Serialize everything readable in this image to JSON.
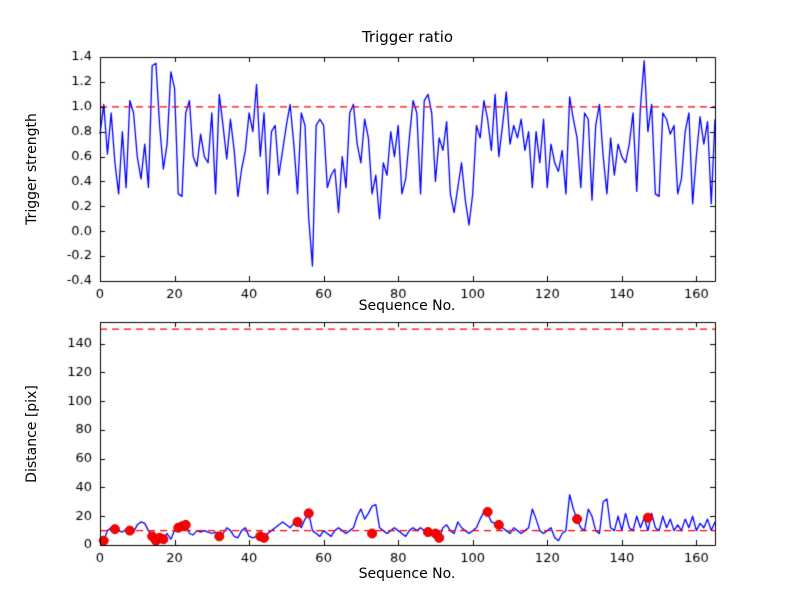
{
  "colors": {
    "line": "#0000ff",
    "threshold": "#ff0000",
    "marker_face": "#ff0000",
    "marker_edge": "#cc0000",
    "axis": "#000000",
    "background": "#ffffff"
  },
  "chart_data": [
    {
      "type": "line",
      "title": "Trigger ratio",
      "xlabel": "Sequence No.",
      "ylabel": "Trigger strength",
      "xlim": [
        0,
        165
      ],
      "ylim": [
        -0.4,
        1.4
      ],
      "xticks": [
        0,
        20,
        40,
        60,
        80,
        100,
        120,
        140,
        160
      ],
      "xticklabels": [
        "0",
        "20",
        "40",
        "60",
        "80",
        "100",
        "120",
        "140",
        "160"
      ],
      "yticks": [
        -0.4,
        -0.2,
        0.0,
        0.2,
        0.4,
        0.6,
        0.8,
        1.0,
        1.2,
        1.4
      ],
      "yticklabels": [
        "-0.4",
        "-0.2",
        "0.0",
        "0.2",
        "0.4",
        "0.6",
        "0.8",
        "1.0",
        "1.2",
        "1.4"
      ],
      "grid": false,
      "legend": "none",
      "hlines": [
        {
          "y": 1.0,
          "style": "dashed",
          "color": "#ff0000"
        }
      ],
      "series": [
        {
          "name": "trigger-strength",
          "color": "#0000ff",
          "values": [
            0.78,
            1.02,
            0.62,
            0.95,
            0.55,
            0.3,
            0.8,
            0.35,
            1.05,
            0.95,
            0.6,
            0.42,
            0.7,
            0.35,
            1.33,
            1.35,
            0.85,
            0.5,
            0.7,
            1.28,
            1.15,
            0.3,
            0.28,
            0.95,
            1.05,
            0.6,
            0.52,
            0.78,
            0.6,
            0.55,
            0.95,
            0.3,
            1.1,
            0.85,
            0.58,
            0.9,
            0.65,
            0.28,
            0.5,
            0.65,
            0.95,
            0.8,
            1.18,
            0.6,
            0.95,
            0.3,
            0.8,
            0.85,
            0.45,
            0.65,
            0.85,
            1.02,
            0.7,
            0.3,
            0.95,
            0.85,
            0.1,
            -0.28,
            0.85,
            0.9,
            0.85,
            0.35,
            0.45,
            0.5,
            0.15,
            0.6,
            0.35,
            0.95,
            1.02,
            0.7,
            0.55,
            0.9,
            0.75,
            0.3,
            0.45,
            0.1,
            0.55,
            0.45,
            0.8,
            0.6,
            0.85,
            0.3,
            0.42,
            0.75,
            1.05,
            0.95,
            0.3,
            1.05,
            1.1,
            0.95,
            0.4,
            0.75,
            0.65,
            0.88,
            0.3,
            0.15,
            0.35,
            0.55,
            0.25,
            0.05,
            0.3,
            0.85,
            0.75,
            1.05,
            0.9,
            0.65,
            1.1,
            0.6,
            0.85,
            1.12,
            0.7,
            0.85,
            0.75,
            0.9,
            0.65,
            0.8,
            0.35,
            0.8,
            0.55,
            0.9,
            0.35,
            0.7,
            0.55,
            0.48,
            0.65,
            0.3,
            1.08,
            0.9,
            0.75,
            0.35,
            0.95,
            0.9,
            0.25,
            0.85,
            1.02,
            0.6,
            0.3,
            0.75,
            0.45,
            0.7,
            0.6,
            0.55,
            0.7,
            0.95,
            0.32,
            1.0,
            1.37,
            0.8,
            1.02,
            0.3,
            0.28,
            0.95,
            0.9,
            0.78,
            0.85,
            0.3,
            0.42,
            0.8,
            0.95,
            0.22,
            0.6,
            0.92,
            0.7,
            0.88,
            0.22,
            0.9
          ]
        }
      ]
    },
    {
      "type": "line",
      "title": "",
      "xlabel": "Sequence No.",
      "ylabel": "Distance [pix]",
      "xlim": [
        0,
        165
      ],
      "ylim": [
        0,
        155
      ],
      "xticks": [
        0,
        20,
        40,
        60,
        80,
        100,
        120,
        140,
        160
      ],
      "xticklabels": [
        "0",
        "20",
        "40",
        "60",
        "80",
        "100",
        "120",
        "140",
        "160"
      ],
      "yticks": [
        0,
        20,
        40,
        60,
        80,
        100,
        120,
        140
      ],
      "yticklabels": [
        "0",
        "20",
        "40",
        "60",
        "80",
        "100",
        "120",
        "140"
      ],
      "grid": false,
      "legend": "none",
      "hlines": [
        {
          "y": 150,
          "style": "dashed",
          "color": "#ff0000"
        },
        {
          "y": 10,
          "style": "dashed",
          "color": "#ff0000"
        }
      ],
      "series": [
        {
          "name": "distance",
          "color": "#0000ff",
          "values": [
            3,
            3,
            10,
            12,
            11,
            10,
            9,
            11,
            10,
            9,
            14,
            16,
            15,
            10,
            6,
            3,
            5,
            4,
            8,
            4,
            10,
            12,
            13,
            14,
            8,
            7,
            10,
            9,
            10,
            9,
            8,
            9,
            6,
            8,
            12,
            10,
            6,
            5,
            10,
            12,
            6,
            5,
            6,
            6,
            5,
            8,
            10,
            12,
            14,
            16,
            14,
            12,
            15,
            16,
            12,
            18,
            22,
            10,
            8,
            6,
            10,
            8,
            6,
            10,
            12,
            10,
            8,
            10,
            12,
            20,
            25,
            18,
            22,
            27,
            28,
            12,
            10,
            8,
            10,
            12,
            10,
            8,
            6,
            10,
            12,
            10,
            12,
            10,
            9,
            8,
            6,
            5,
            12,
            14,
            10,
            8,
            16,
            12,
            10,
            8,
            10,
            12,
            18,
            23,
            22,
            16,
            15,
            14,
            12,
            10,
            8,
            12,
            10,
            8,
            10,
            12,
            25,
            18,
            10,
            8,
            10,
            12,
            5,
            3,
            8,
            10,
            35,
            25,
            18,
            12,
            10,
            25,
            20,
            10,
            8,
            30,
            32,
            12,
            10,
            20,
            10,
            22,
            12,
            10,
            20,
            12,
            19,
            10,
            22,
            12,
            10,
            20,
            12,
            18,
            10,
            14,
            10,
            18,
            12,
            20,
            10,
            15,
            12,
            18,
            10,
            16
          ]
        }
      ],
      "scatter": {
        "name": "trigger-events",
        "color": "#ff0000",
        "points": [
          [
            1,
            3
          ],
          [
            4,
            11
          ],
          [
            8,
            10
          ],
          [
            14,
            6
          ],
          [
            15,
            3
          ],
          [
            16,
            5
          ],
          [
            17,
            4
          ],
          [
            21,
            12
          ],
          [
            22,
            13
          ],
          [
            23,
            14
          ],
          [
            32,
            6
          ],
          [
            43,
            6
          ],
          [
            44,
            5
          ],
          [
            53,
            16
          ],
          [
            56,
            22
          ],
          [
            73,
            8
          ],
          [
            88,
            9
          ],
          [
            90,
            8
          ],
          [
            91,
            5
          ],
          [
            104,
            23
          ],
          [
            107,
            14
          ],
          [
            128,
            18
          ],
          [
            147,
            19
          ]
        ]
      }
    }
  ]
}
